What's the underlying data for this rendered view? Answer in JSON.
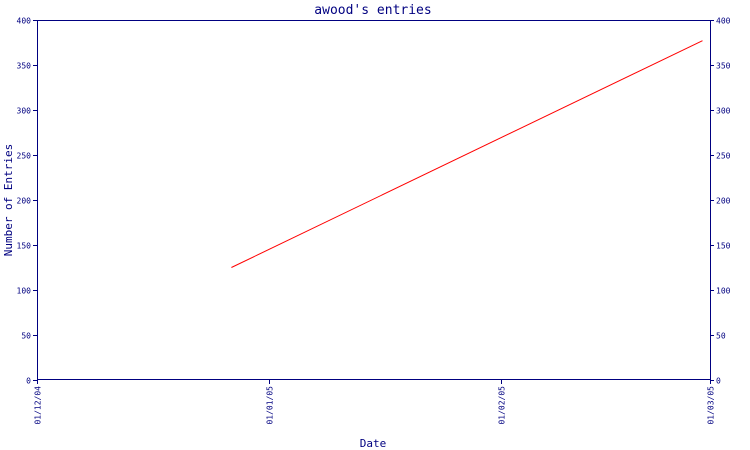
{
  "chart_data": {
    "type": "line",
    "title": "awood's entries",
    "xlabel": "Date",
    "ylabel": "Number of Entries",
    "x_ticks": [
      "01/12/04",
      "01/01/05",
      "01/02/05",
      "01/03/05"
    ],
    "x_tick_dates": [
      "2004-12-01",
      "2005-01-01",
      "2005-02-01",
      "2005-03-01"
    ],
    "y_ticks": [
      0,
      50,
      100,
      150,
      200,
      250,
      300,
      350,
      400
    ],
    "ylim": [
      0,
      400
    ],
    "xlim": [
      "2004-12-01",
      "2005-03-01"
    ],
    "right_axis_mirrored": true,
    "grid": false,
    "series": [
      {
        "color": "#ff0000",
        "points": [
          {
            "x": "2004-12-27",
            "y": 125
          },
          {
            "x": "2005-02-28",
            "y": 377
          }
        ]
      }
    ]
  }
}
